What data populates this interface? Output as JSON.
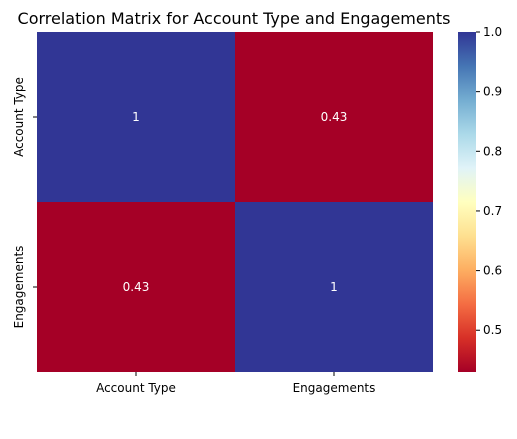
{
  "chart_data": {
    "type": "heatmap",
    "title": "Correlation Matrix for Account Type and Engagements",
    "row_labels": [
      "Account Type",
      "Engagements"
    ],
    "col_labels": [
      "Account Type",
      "Engagements"
    ],
    "values": [
      [
        1.0,
        0.43
      ],
      [
        0.43,
        1.0
      ]
    ],
    "annotations": [
      [
        "1",
        "0.43"
      ],
      [
        "0.43",
        "1"
      ]
    ],
    "colormap": "RdYlBu",
    "colorbar": {
      "range": [
        0.43,
        1.0
      ],
      "ticks": [
        0.5,
        0.6,
        0.7,
        0.8,
        0.9,
        1.0
      ],
      "tick_labels": [
        "0.5",
        "0.6",
        "0.7",
        "0.8",
        "0.9",
        "1.0"
      ]
    },
    "colors": {
      "high": "#313695",
      "low": "#a50026",
      "annotation_text": "#ffffff"
    }
  }
}
